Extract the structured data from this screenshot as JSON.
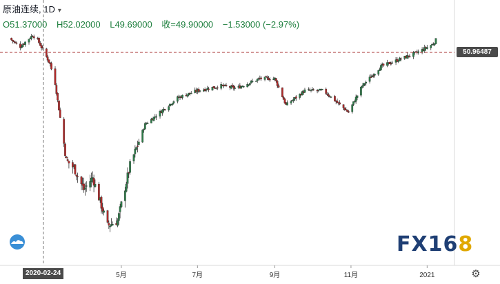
{
  "legend": {
    "symbol": "原油连续, 1D",
    "open": "O51.37000",
    "high": "H52.02000",
    "low": "L49.69000",
    "close": "收=49.90000",
    "change": "−1.53000 (−2.97%)"
  },
  "crosshair": {
    "price_label": "50.96487",
    "date_label": "2020-02-24"
  },
  "brand": {
    "text": "FX16",
    "accent": "8"
  },
  "colors": {
    "up": "#2e7d4a",
    "down": "#b02a2a",
    "legend_green": "#1e7f3e",
    "brand_blue": "#1f3f74",
    "brand_gold": "#e0a800"
  },
  "chart_data": {
    "type": "candlestick",
    "title": "原油连续, 1D",
    "interval": "1D",
    "x_ticks": [
      "5月",
      "7月",
      "9月",
      "11月",
      "2021"
    ],
    "y_axis_visible": false,
    "crosshair_price": 50.96487,
    "crosshair_date": "2020-02-24",
    "series": [
      {
        "x": "2020-02-01",
        "close": 51.4
      },
      {
        "x": "2020-02-10",
        "close": 49.6
      },
      {
        "x": "2020-02-20",
        "close": 52.0
      },
      {
        "x": "2020-02-24",
        "close": 51.0
      },
      {
        "x": "2020-03-05",
        "close": 46.0
      },
      {
        "x": "2020-03-09",
        "close": 42.0
      },
      {
        "x": "2020-03-18",
        "close": 26.0
      },
      {
        "x": "2020-03-24",
        "close": 24.5
      },
      {
        "x": "2020-04-01",
        "close": 20.0
      },
      {
        "x": "2020-04-08",
        "close": 22.5
      },
      {
        "x": "2020-04-20",
        "close": 12.5
      },
      {
        "x": "2020-04-28",
        "close": 13.5
      },
      {
        "x": "2020-05-08",
        "close": 25.0
      },
      {
        "x": "2020-05-20",
        "close": 33.5
      },
      {
        "x": "2020-06-01",
        "close": 36.0
      },
      {
        "x": "2020-06-15",
        "close": 39.0
      },
      {
        "x": "2020-07-01",
        "close": 40.5
      },
      {
        "x": "2020-07-20",
        "close": 41.5
      },
      {
        "x": "2020-08-01",
        "close": 41.0
      },
      {
        "x": "2020-08-20",
        "close": 43.0
      },
      {
        "x": "2020-09-01",
        "close": 43.0
      },
      {
        "x": "2020-09-10",
        "close": 37.5
      },
      {
        "x": "2020-09-25",
        "close": 40.5
      },
      {
        "x": "2020-10-10",
        "close": 40.5
      },
      {
        "x": "2020-10-30",
        "close": 36.0
      },
      {
        "x": "2020-11-10",
        "close": 41.5
      },
      {
        "x": "2020-11-25",
        "close": 45.5
      },
      {
        "x": "2020-12-10",
        "close": 47.0
      },
      {
        "x": "2020-12-25",
        "close": 48.5
      },
      {
        "x": "2021-01-06",
        "close": 50.2
      },
      {
        "x": "2021-01-08",
        "close": 51.0
      }
    ]
  }
}
